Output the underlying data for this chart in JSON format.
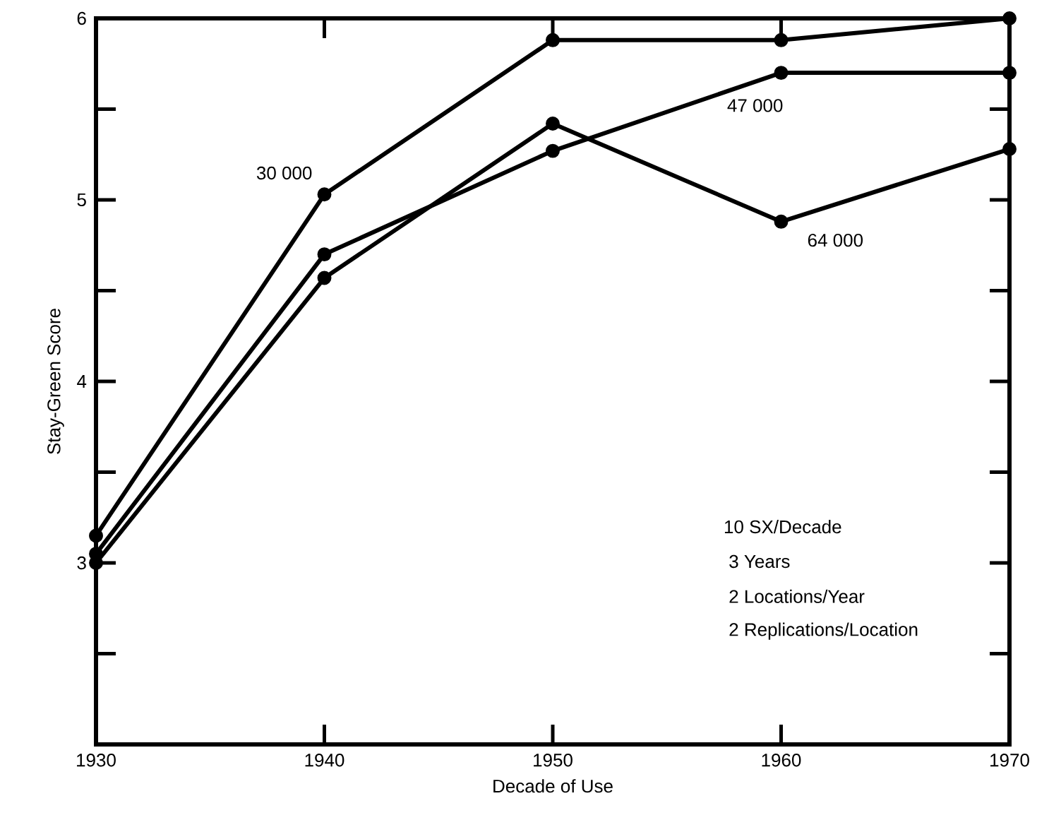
{
  "chart_data": {
    "type": "line",
    "xlabel": "Decade of Use",
    "ylabel": "Stay-Green Score",
    "x": [
      1930,
      1940,
      1950,
      1960,
      1970
    ],
    "series": [
      {
        "name": "30 000",
        "color": "#000000",
        "values": [
          3.15,
          5.03,
          5.88,
          5.88,
          6.0
        ]
      },
      {
        "name": "47 000",
        "color": "#000000",
        "values": [
          3.05,
          4.7,
          5.27,
          5.7,
          5.7
        ]
      },
      {
        "name": "64 000",
        "color": "#000000",
        "values": [
          3.0,
          4.57,
          5.42,
          4.88,
          5.28
        ]
      }
    ],
    "xlim": [
      1930,
      1970
    ],
    "xticks": [
      1930,
      1940,
      1950,
      1960,
      1970
    ],
    "ylim": [
      2,
      6
    ],
    "yticks": [
      {
        "value": 2.5,
        "label": null
      },
      3,
      {
        "value": 3.5,
        "label": null
      },
      4,
      {
        "value": 4.5,
        "label": null
      },
      5,
      {
        "value": 5.5,
        "label": null
      },
      6
    ],
    "annotations": [
      "10 SX/Decade",
      " 3 Years",
      " 2 Locations/Year",
      " 2 Replications/Location"
    ],
    "grid": false,
    "legend": false,
    "marker": "circle",
    "line_style": "solid"
  }
}
